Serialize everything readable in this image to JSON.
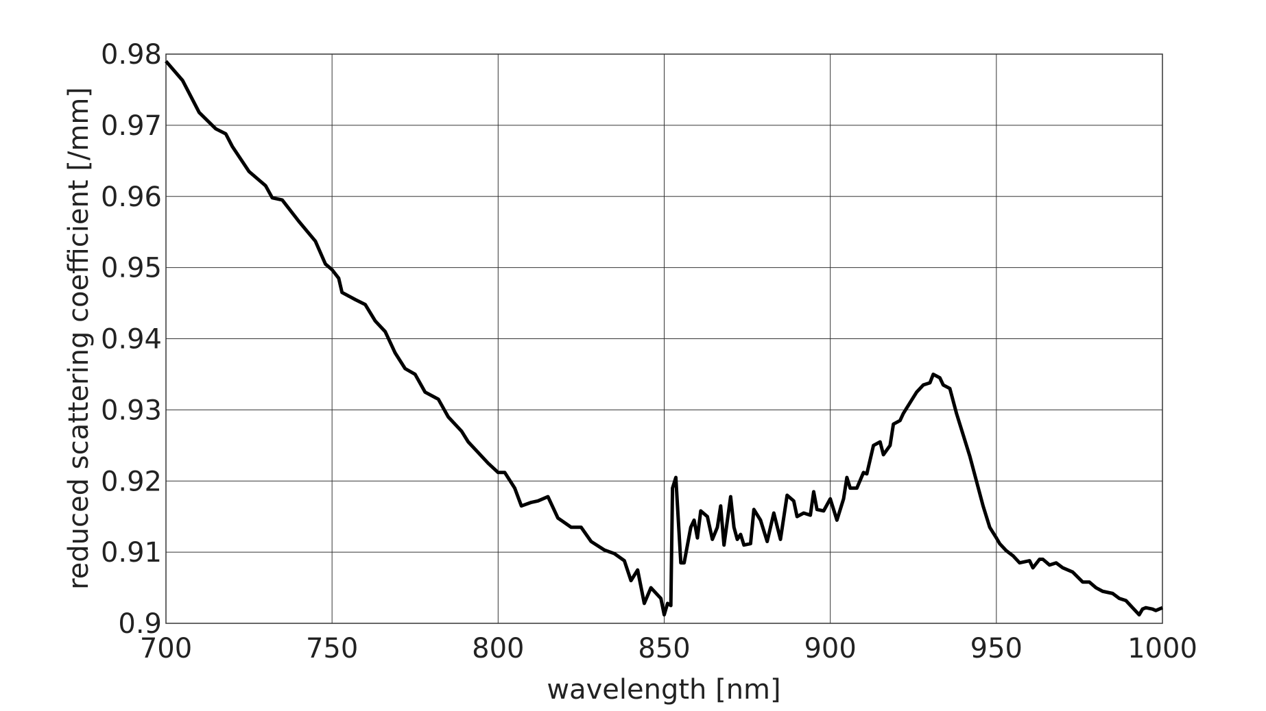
{
  "chart_data": {
    "type": "line",
    "xlabel": "wavelength [nm]",
    "ylabel": "reduced scattering coefficient [/mm]",
    "x": [
      700,
      705,
      710,
      715,
      718,
      720,
      725,
      730,
      732,
      735,
      740,
      745,
      748,
      750,
      752,
      753,
      757,
      760,
      763,
      766,
      769,
      772,
      775,
      778,
      782,
      785,
      789,
      791,
      794,
      797,
      800,
      802,
      805,
      807,
      810,
      812,
      815,
      818,
      822,
      825,
      828,
      832,
      835,
      838,
      840,
      842,
      844,
      846,
      849,
      850,
      851,
      852,
      852.5,
      853.5,
      855,
      856,
      858,
      859,
      860,
      861,
      863,
      864.5,
      866,
      867,
      868,
      870,
      871,
      872,
      873,
      874,
      876,
      877,
      879,
      881,
      883,
      885,
      887,
      889,
      890,
      892,
      894,
      895,
      896,
      898,
      900,
      902,
      904,
      905,
      906,
      908,
      910,
      911,
      913,
      915,
      916,
      918,
      919,
      921,
      922,
      924,
      926,
      928,
      930,
      931,
      933,
      934,
      936,
      938,
      940,
      942,
      944,
      946,
      948,
      950,
      951,
      953,
      955,
      957,
      960,
      961,
      963,
      964,
      966,
      968,
      970,
      973,
      976,
      978,
      980,
      982,
      985,
      987,
      989,
      991,
      993,
      994,
      995,
      997,
      998,
      1000
    ],
    "series": [
      {
        "name": "reduced scattering coefficient",
        "color": "#000000",
        "values": [
          0.979,
          0.9763,
          0.9718,
          0.9695,
          0.9688,
          0.967,
          0.9635,
          0.9615,
          0.9598,
          0.9595,
          0.9565,
          0.9537,
          0.9505,
          0.9497,
          0.9485,
          0.9465,
          0.9455,
          0.9448,
          0.9425,
          0.941,
          0.938,
          0.9358,
          0.935,
          0.9325,
          0.9315,
          0.929,
          0.927,
          0.9255,
          0.924,
          0.9225,
          0.9212,
          0.9212,
          0.919,
          0.9165,
          0.917,
          0.9172,
          0.9178,
          0.9148,
          0.9135,
          0.9135,
          0.9115,
          0.9103,
          0.9098,
          0.9088,
          0.906,
          0.9075,
          0.9028,
          0.905,
          0.9035,
          0.9012,
          0.9028,
          0.9025,
          0.919,
          0.9205,
          0.9085,
          0.9085,
          0.9135,
          0.9145,
          0.912,
          0.9158,
          0.915,
          0.9118,
          0.9135,
          0.9165,
          0.911,
          0.9178,
          0.9135,
          0.9118,
          0.9125,
          0.911,
          0.9112,
          0.916,
          0.9145,
          0.9115,
          0.9155,
          0.9118,
          0.918,
          0.9172,
          0.915,
          0.9155,
          0.9152,
          0.9185,
          0.916,
          0.9158,
          0.9175,
          0.9145,
          0.9175,
          0.9205,
          0.919,
          0.919,
          0.9212,
          0.921,
          0.925,
          0.9255,
          0.9237,
          0.925,
          0.928,
          0.9285,
          0.9295,
          0.931,
          0.9325,
          0.9335,
          0.9338,
          0.935,
          0.9345,
          0.9335,
          0.933,
          0.9295,
          0.9265,
          0.9235,
          0.92,
          0.9165,
          0.9135,
          0.912,
          0.9112,
          0.9102,
          0.9095,
          0.9085,
          0.9088,
          0.9078,
          0.909,
          0.909,
          0.9082,
          0.9085,
          0.9078,
          0.9072,
          0.9058,
          0.9058,
          0.905,
          0.9045,
          0.9042,
          0.9035,
          0.9032,
          0.9022,
          0.9012,
          0.902,
          0.9022,
          0.902,
          0.9018,
          0.9022
        ]
      }
    ],
    "xlim": [
      700,
      1000
    ],
    "xticks": [
      700,
      750,
      800,
      850,
      900,
      950,
      1000
    ],
    "ylim": [
      0.9,
      0.98
    ],
    "yticks": [
      0.9,
      0.91,
      0.92,
      0.93,
      0.94,
      0.95,
      0.96,
      0.97,
      0.98
    ],
    "grid": true
  }
}
